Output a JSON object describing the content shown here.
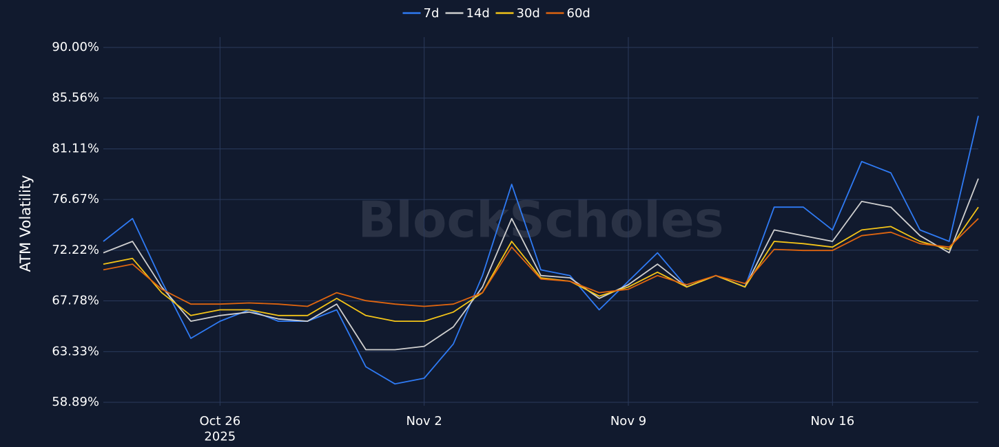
{
  "chart_data": {
    "type": "line",
    "y_label": "ATM Volatility",
    "watermark": "BlockScholes",
    "grid": true,
    "legend": "top",
    "x": [
      "2025-10-22",
      "2025-10-23",
      "2025-10-24",
      "2025-10-25",
      "2025-10-26",
      "2025-10-27",
      "2025-10-28",
      "2025-10-29",
      "2025-10-30",
      "2025-10-31",
      "2025-11-01",
      "2025-11-02",
      "2025-11-03",
      "2025-11-04",
      "2025-11-05",
      "2025-11-06",
      "2025-11-07",
      "2025-11-08",
      "2025-11-09",
      "2025-11-10",
      "2025-11-11",
      "2025-11-12",
      "2025-11-13",
      "2025-11-14",
      "2025-11-15",
      "2025-11-16",
      "2025-11-17",
      "2025-11-18",
      "2025-11-19",
      "2025-11-20",
      "2025-11-21"
    ],
    "xlim": [
      "2025-10-22",
      "2025-11-21"
    ],
    "xticks": [
      {
        "value": "2025-10-26",
        "label": "Oct 26\n2025"
      },
      {
        "value": "2025-11-02",
        "label": "Nov 2"
      },
      {
        "value": "2025-11-09",
        "label": "Nov 9"
      },
      {
        "value": "2025-11-16",
        "label": "Nov 16"
      }
    ],
    "ylim": [
      58.89,
      90
    ],
    "yticks": [
      {
        "value": 90,
        "label": "90.00%"
      },
      {
        "value": 85.56,
        "label": "85.56%"
      },
      {
        "value": 81.11,
        "label": "81.11%"
      },
      {
        "value": 76.67,
        "label": "76.67%"
      },
      {
        "value": 72.22,
        "label": "72.22%"
      },
      {
        "value": 67.78,
        "label": "67.78%"
      },
      {
        "value": 63.33,
        "label": "63.33%"
      },
      {
        "value": 58.89,
        "label": "58.89%"
      }
    ],
    "series": [
      {
        "name": "7d",
        "color": "#2f7bf5",
        "values": [
          73,
          75,
          69.5,
          64.5,
          66,
          67,
          66,
          66,
          67,
          62,
          60.5,
          61,
          64,
          70,
          78,
          70.5,
          70,
          67,
          69.5,
          72,
          69,
          70,
          69,
          76,
          76,
          74,
          80,
          79,
          74,
          73,
          84
        ]
      },
      {
        "name": "14d",
        "color": "#d0d0d0",
        "values": [
          72,
          73,
          69,
          66,
          66.5,
          66.8,
          66.2,
          66,
          67.5,
          63.5,
          63.5,
          63.8,
          65.5,
          69,
          75,
          70,
          69.8,
          68,
          69.2,
          71,
          69,
          70,
          69,
          74,
          73.5,
          73,
          76.5,
          76,
          73.5,
          72,
          78.5
        ]
      },
      {
        "name": "30d",
        "color": "#f5c518",
        "values": [
          71,
          71.5,
          68.5,
          66.5,
          67,
          67,
          66.5,
          66.5,
          68,
          66.5,
          66,
          66,
          66.8,
          68.5,
          73,
          69.8,
          69.5,
          68.2,
          69,
          70.3,
          69,
          70,
          69,
          73,
          72.8,
          72.5,
          74,
          74.3,
          73,
          72.3,
          76
        ]
      },
      {
        "name": "60d",
        "color": "#e0650f",
        "values": [
          70.5,
          71,
          68.8,
          67.5,
          67.5,
          67.6,
          67.5,
          67.3,
          68.5,
          67.8,
          67.5,
          67.3,
          67.5,
          68.5,
          72.5,
          69.7,
          69.5,
          68.5,
          68.8,
          70,
          69.2,
          70,
          69.3,
          72.3,
          72.2,
          72.2,
          73.5,
          73.8,
          72.8,
          72.5,
          75
        ]
      }
    ]
  }
}
